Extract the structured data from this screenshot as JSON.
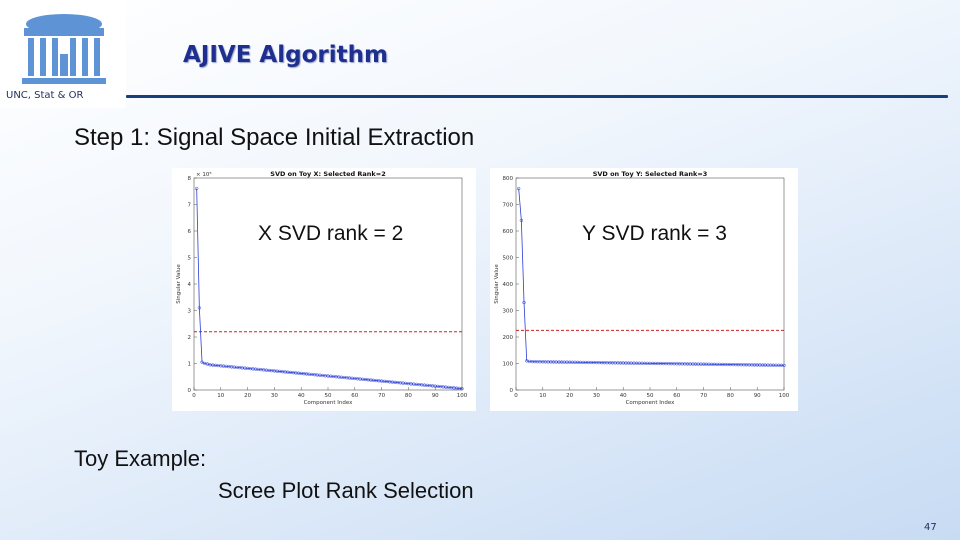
{
  "header": {
    "org_label": "UNC, Stat & OR",
    "title": "AJIVE Algorithm",
    "page_number": "47"
  },
  "main": {
    "step_heading": "Step 1: Signal Space Initial Extraction",
    "toy_example": "Toy Example:",
    "scree_caption": "Scree Plot Rank Selection",
    "note_x": "X SVD rank = 2",
    "note_y": "Y SVD rank = 3"
  },
  "colors": {
    "title": "#1f2f8f",
    "rule": "#16407a",
    "series": "#2b3fd6",
    "threshold": "#cc2222"
  },
  "chart_data": [
    {
      "type": "line",
      "title": "SVD on Toy X: Selected Rank=2",
      "xlabel": "Component Index",
      "ylabel": "Singular Value",
      "y_exponent_label": "× 10⁵",
      "xlim": [
        0,
        100
      ],
      "ylim": [
        0,
        8
      ],
      "xticks": [
        0,
        10,
        20,
        30,
        40,
        50,
        60,
        70,
        80,
        90,
        100
      ],
      "yticks": [
        0,
        1,
        2,
        3,
        4,
        5,
        6,
        7,
        8
      ],
      "ytick_labels": [
        "0",
        "1",
        "2",
        "3",
        "4",
        "5",
        "6",
        "7",
        "8"
      ],
      "threshold": 2.2,
      "series": [
        {
          "x_start": 1,
          "x_end": 100,
          "head": [
            7.6,
            3.1,
            1.05,
            1.0,
            0.98
          ],
          "tail_start": 0.95,
          "tail_end": 0.05
        }
      ]
    },
    {
      "type": "line",
      "title": "SVD on Toy Y: Selected Rank=3",
      "xlabel": "Component Index",
      "ylabel": "Singular Value",
      "xlim": [
        0,
        100
      ],
      "ylim": [
        0,
        800
      ],
      "xticks": [
        0,
        10,
        20,
        30,
        40,
        50,
        60,
        70,
        80,
        90,
        100
      ],
      "yticks": [
        0,
        100,
        200,
        300,
        400,
        500,
        600,
        700,
        800
      ],
      "ytick_labels": [
        "0",
        "100",
        "200",
        "300",
        "400",
        "500",
        "600",
        "700",
        "800"
      ],
      "threshold": 225,
      "series": [
        {
          "x_start": 1,
          "x_end": 100,
          "head": [
            760,
            640,
            330,
            110,
            108
          ],
          "tail_start": 107,
          "tail_end": 93
        }
      ]
    }
  ]
}
